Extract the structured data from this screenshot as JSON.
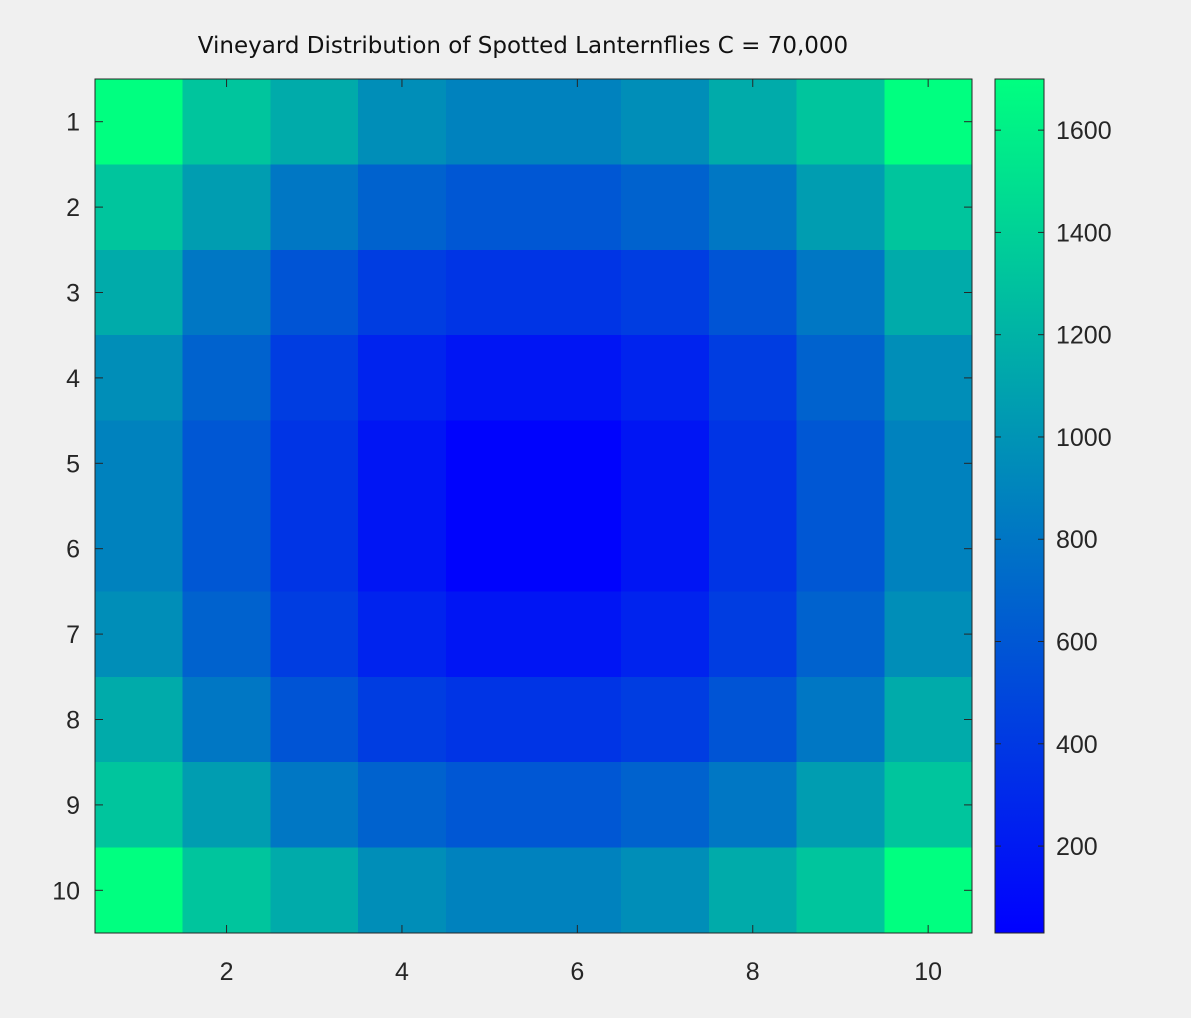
{
  "chart_data": {
    "type": "heatmap",
    "title": "Vineyard Distribution of Spotted Lanternflies C =  70,000",
    "x": [
      1,
      2,
      3,
      4,
      5,
      6,
      7,
      8,
      9,
      10
    ],
    "y": [
      1,
      2,
      3,
      4,
      5,
      6,
      7,
      8,
      9,
      10
    ],
    "x_tick_labels": [
      "2",
      "4",
      "6",
      "8",
      "10"
    ],
    "y_tick_labels": [
      "1",
      "2",
      "3",
      "4",
      "5",
      "6",
      "7",
      "8",
      "9",
      "10"
    ],
    "xlim": [
      0.5,
      10.5
    ],
    "ylim": [
      0.5,
      10.5
    ],
    "y_direction": "reverse",
    "values": [
      [
        1700,
        1320,
        1150,
        960,
        880,
        880,
        960,
        1150,
        1320,
        1700
      ],
      [
        1320,
        1060,
        810,
        670,
        600,
        600,
        670,
        810,
        1060,
        1320
      ],
      [
        1150,
        810,
        580,
        430,
        370,
        370,
        430,
        580,
        810,
        1150
      ],
      [
        960,
        670,
        430,
        260,
        170,
        170,
        260,
        430,
        670,
        960
      ],
      [
        880,
        600,
        370,
        170,
        50,
        50,
        170,
        370,
        600,
        880
      ],
      [
        880,
        600,
        370,
        170,
        50,
        50,
        170,
        370,
        600,
        880
      ],
      [
        960,
        670,
        430,
        260,
        170,
        170,
        260,
        430,
        670,
        960
      ],
      [
        1150,
        810,
        580,
        430,
        370,
        370,
        430,
        580,
        810,
        1150
      ],
      [
        1320,
        1060,
        810,
        670,
        600,
        600,
        670,
        810,
        1060,
        1320
      ],
      [
        1700,
        1320,
        1150,
        960,
        880,
        880,
        960,
        1150,
        1320,
        1700
      ]
    ],
    "colormap": "winter",
    "colormap_low": "#0000ff",
    "colormap_high": "#00ff80",
    "clim": [
      30,
      1700
    ],
    "colorbar": {
      "location": "right",
      "ticks": [
        200,
        400,
        600,
        800,
        1000,
        1200,
        1400,
        1600
      ],
      "tick_labels": [
        "200",
        "400",
        "600",
        "800",
        "1000",
        "1200",
        "1400",
        "1600"
      ]
    },
    "grid": false
  }
}
